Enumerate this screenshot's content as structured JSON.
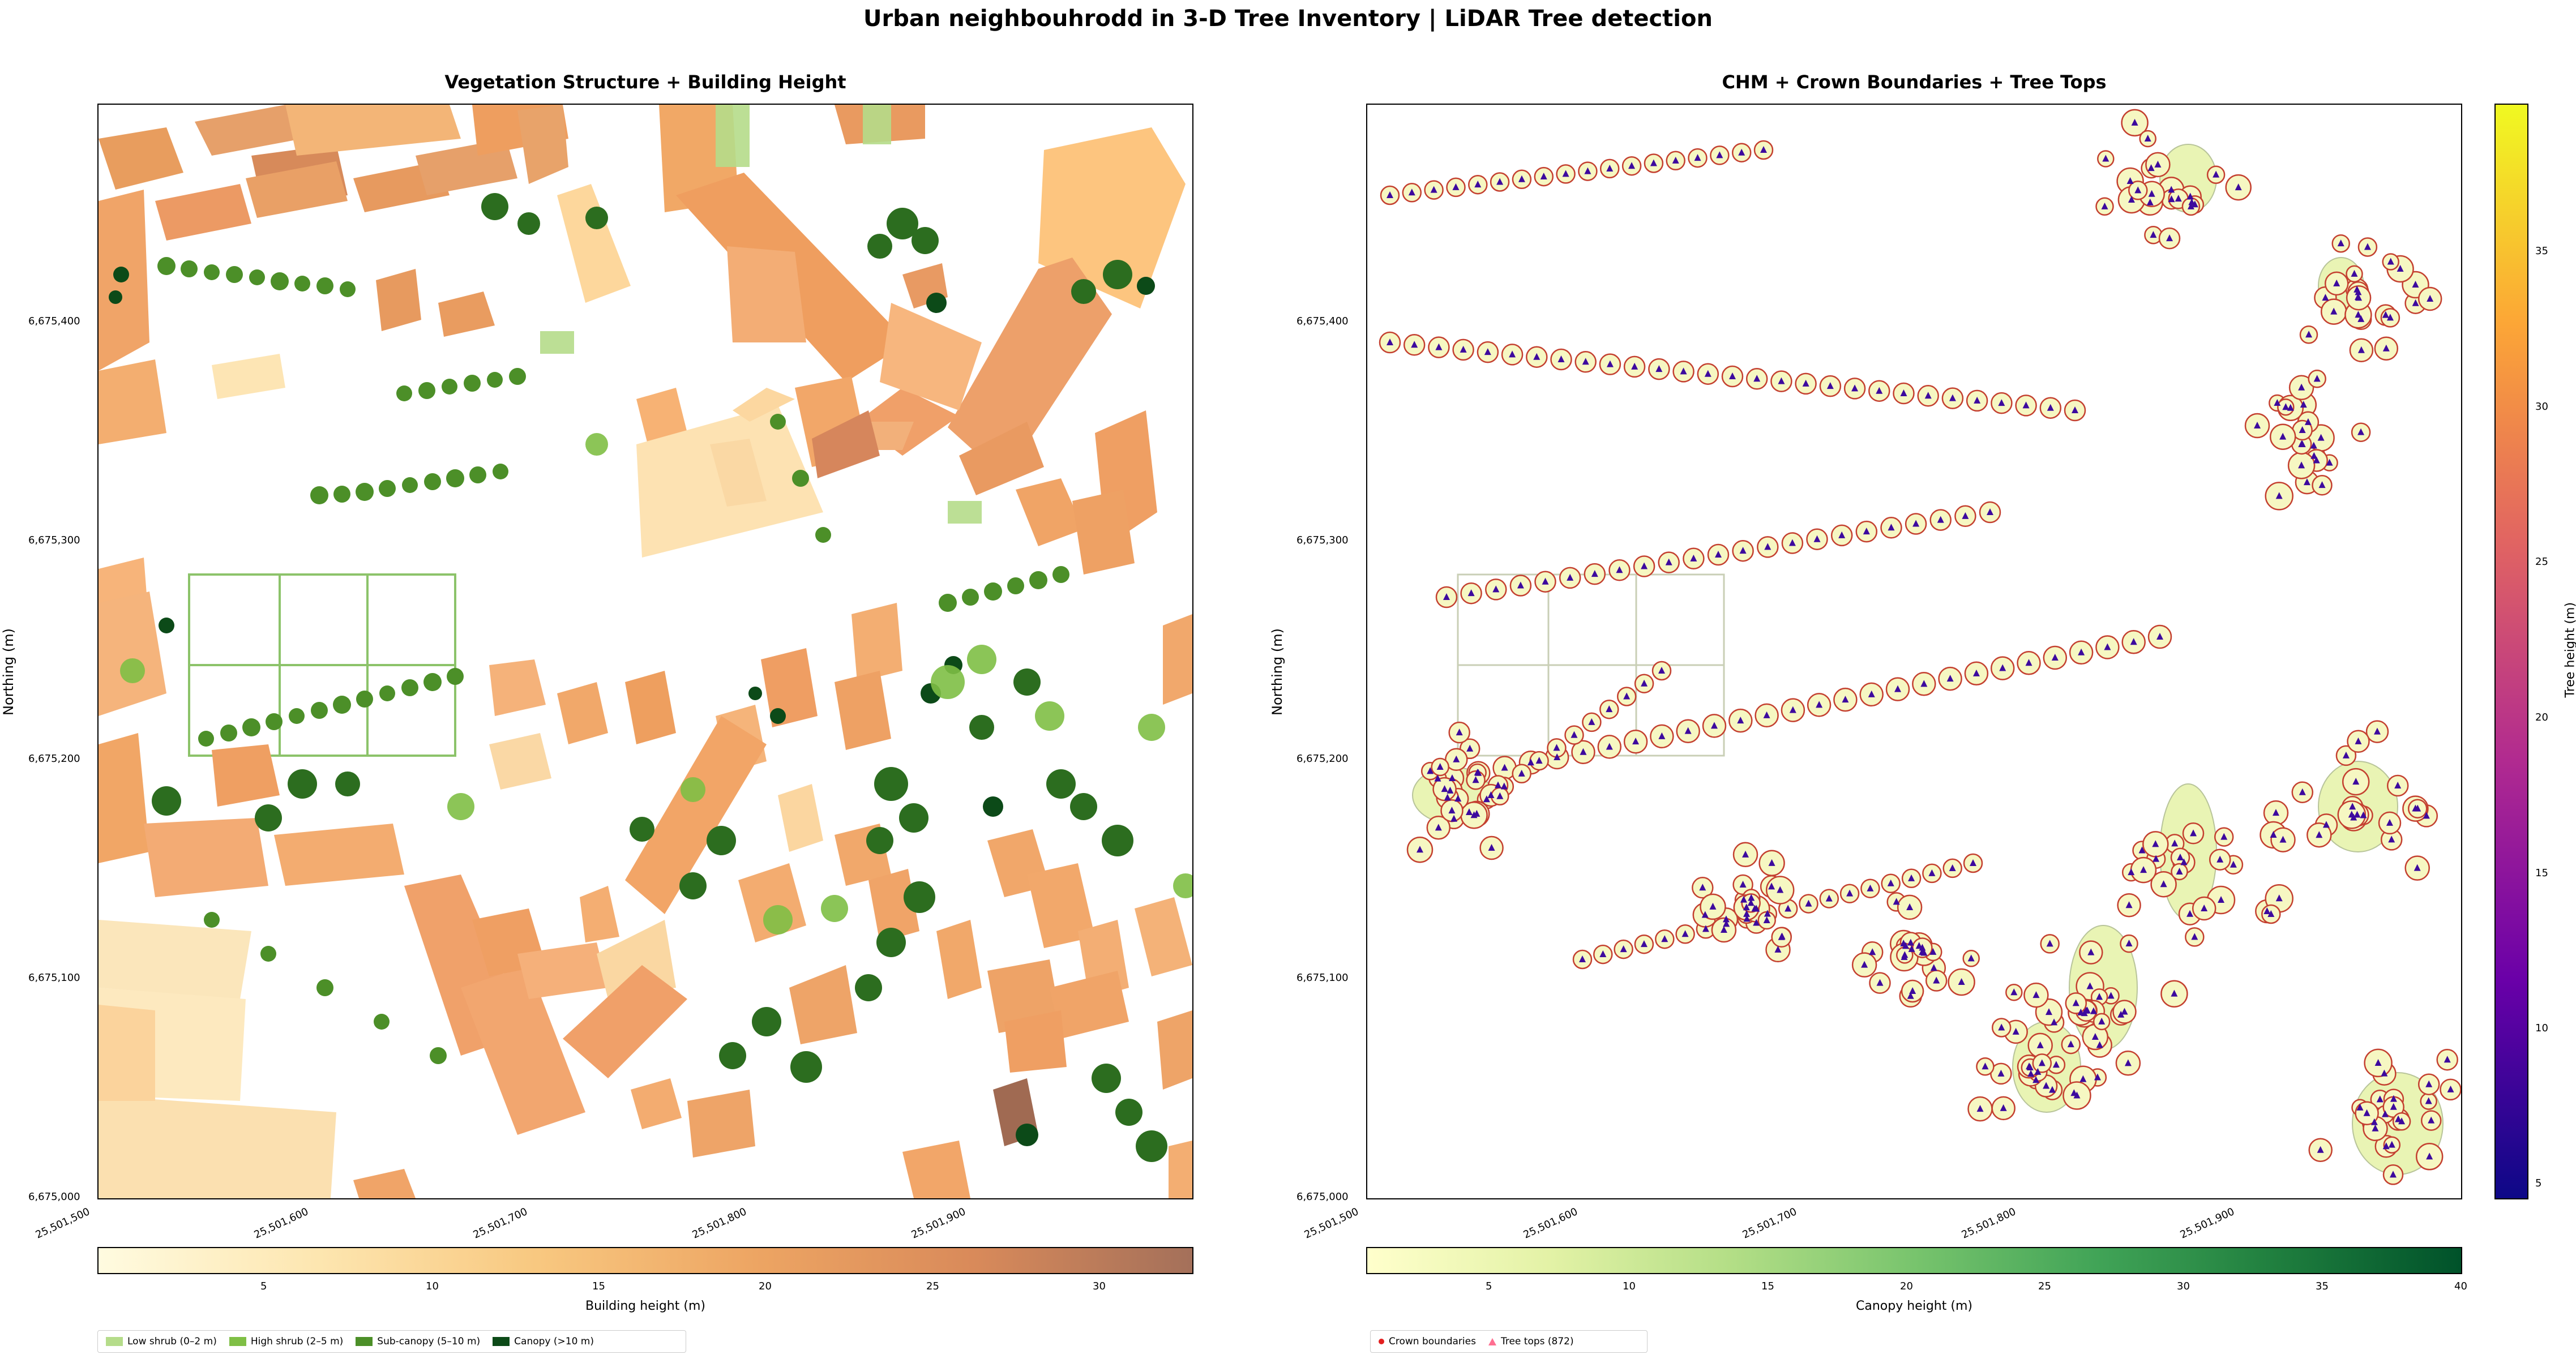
{
  "title": "Urban neighbouhrodd in 3-D Tree Inventory | LiDAR Tree detection",
  "left_panel": {
    "title": "Vegetation Structure + Building Height",
    "ylabel": "Northing (m)",
    "yticks": [
      "6,675,400",
      "6,675,300",
      "6,675,200",
      "6,675,100",
      "6,675,000"
    ],
    "xticks": [
      "25,501,500",
      "25,501,600",
      "25,501,700",
      "25,501,800",
      "25,501,900"
    ],
    "colorbar": {
      "label": "Building height (m)",
      "ticks": [
        "5",
        "10",
        "15",
        "20",
        "25",
        "30"
      ],
      "colors": [
        "#fffbe0",
        "#fde6b0",
        "#f8c880",
        "#eda563",
        "#d98a5a",
        "#a4705a"
      ]
    },
    "legend": [
      {
        "label": "Low shrub (0–2 m)",
        "color": "#b5dc8a"
      },
      {
        "label": "High shrub (2–5 m)",
        "color": "#7fbf45"
      },
      {
        "label": "Sub-canopy (5–10 m)",
        "color": "#4c8f28"
      },
      {
        "label": "Canopy (>10 m)",
        "color": "#0c4a18"
      }
    ]
  },
  "right_panel": {
    "title": "CHM + Crown Boundaries + Tree Tops",
    "ylabel": "Northing (m)",
    "yticks": [
      "6,675,400",
      "6,675,300",
      "6,675,200",
      "6,675,100",
      "6,675,000"
    ],
    "xticks": [
      "25,501,500",
      "25,501,600",
      "25,501,700",
      "25,501,800",
      "25,501,900"
    ],
    "colorbar": {
      "label": "Canopy height (m)",
      "ticks": [
        "5",
        "10",
        "15",
        "20",
        "25",
        "30",
        "35",
        "40"
      ],
      "colors": [
        "#ffffcc",
        "#e3f2a6",
        "#b3de86",
        "#78c46d",
        "#41a457",
        "#1f7e3e",
        "#00522a"
      ]
    },
    "side_colorbar": {
      "label": "Tree height (m)",
      "ticks": [
        "35",
        "30",
        "25",
        "20",
        "15",
        "10",
        "5"
      ],
      "colors": [
        "#f0f921",
        "#fca636",
        "#e16462",
        "#b12a90",
        "#6a00a8",
        "#0d0887"
      ]
    },
    "legend": [
      {
        "label": "Crown boundaries",
        "color": "#e32020"
      },
      {
        "label": "Tree tops (872)",
        "color": "#ff6f91"
      }
    ]
  }
}
